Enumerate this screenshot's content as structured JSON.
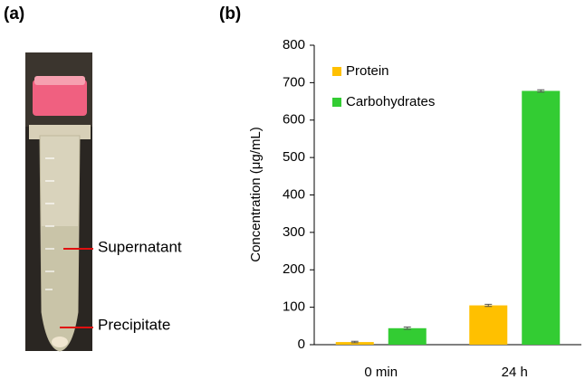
{
  "panel_labels": [
    "(a)",
    "(b)"
  ],
  "photo": {
    "annotations": [
      "Supernatant",
      "Precipitate"
    ]
  },
  "chart_data": {
    "type": "bar",
    "ylabel": "Concentration (μg/mL)",
    "categories": [
      "0 min",
      "24 h"
    ],
    "series": [
      {
        "name": "Protein",
        "color": "#ffc000",
        "values": [
          7,
          105
        ],
        "errors": [
          2,
          3
        ]
      },
      {
        "name": "Carbohydrates",
        "color": "#33cc33",
        "values": [
          44,
          678
        ],
        "errors": [
          3,
          3
        ]
      }
    ],
    "ylim": [
      0,
      800
    ],
    "yticks": [
      0,
      100,
      200,
      300,
      400,
      500,
      600,
      700,
      800
    ],
    "legend": "upper left",
    "grid": false
  }
}
